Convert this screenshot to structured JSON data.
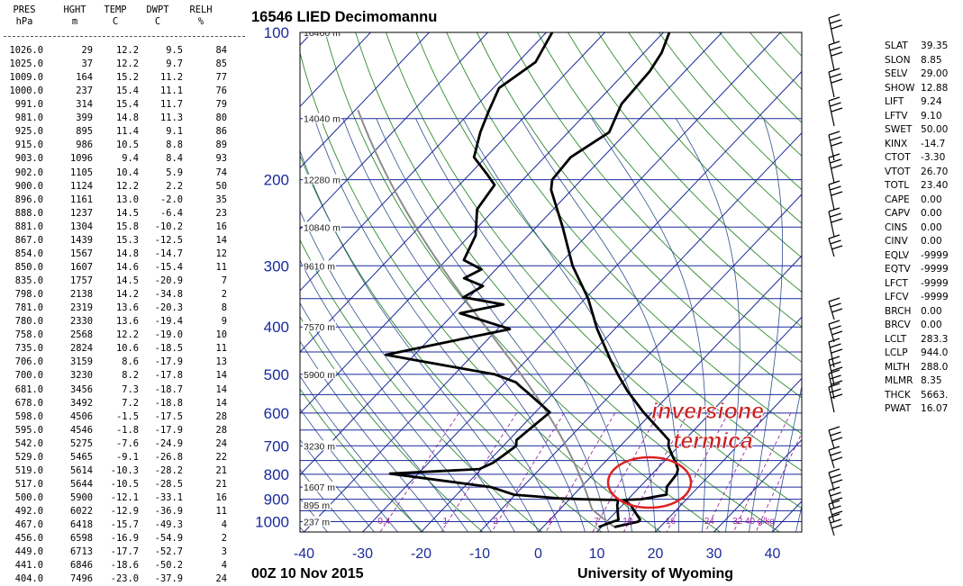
{
  "table": {
    "columns": [
      {
        "name": "PRES",
        "unit": "hPa"
      },
      {
        "name": "HGHT",
        "unit": "m"
      },
      {
        "name": "TEMP",
        "unit": "C"
      },
      {
        "name": "DWPT",
        "unit": "C"
      },
      {
        "name": "RELH",
        "unit": "%"
      }
    ],
    "rows": [
      [
        "1026.0",
        "29",
        "12.2",
        "9.5",
        "84"
      ],
      [
        "1025.0",
        "37",
        "12.2",
        "9.7",
        "85"
      ],
      [
        "1009.0",
        "164",
        "15.2",
        "11.2",
        "77"
      ],
      [
        "1000.0",
        "237",
        "15.4",
        "11.1",
        "76"
      ],
      [
        "991.0",
        "314",
        "15.4",
        "11.7",
        "79"
      ],
      [
        "981.0",
        "399",
        "14.8",
        "11.3",
        "80"
      ],
      [
        "925.0",
        "895",
        "11.4",
        "9.1",
        "86"
      ],
      [
        "915.0",
        "986",
        "10.5",
        "8.8",
        "89"
      ],
      [
        "903.0",
        "1096",
        "9.4",
        "8.4",
        "93"
      ],
      [
        "902.0",
        "1105",
        "10.4",
        "5.9",
        "74"
      ],
      [
        "900.0",
        "1124",
        "12.2",
        "2.2",
        "50"
      ],
      [
        "896.0",
        "1161",
        "13.0",
        "-2.0",
        "35"
      ],
      [
        "888.0",
        "1237",
        "14.5",
        "-6.4",
        "23"
      ],
      [
        "881.0",
        "1304",
        "15.8",
        "-10.2",
        "16"
      ],
      [
        "867.0",
        "1439",
        "15.3",
        "-12.5",
        "14"
      ],
      [
        "854.0",
        "1567",
        "14.8",
        "-14.7",
        "12"
      ],
      [
        "850.0",
        "1607",
        "14.6",
        "-15.4",
        "11"
      ],
      [
        "835.0",
        "1757",
        "14.5",
        "-20.9",
        "7"
      ],
      [
        "798.0",
        "2138",
        "14.2",
        "-34.8",
        "2"
      ],
      [
        "781.0",
        "2319",
        "13.6",
        "-20.3",
        "8"
      ],
      [
        "780.0",
        "2330",
        "13.6",
        "-19.4",
        "9"
      ],
      [
        "758.0",
        "2568",
        "12.2",
        "-19.0",
        "10"
      ],
      [
        "735.0",
        "2824",
        "10.6",
        "-18.5",
        "11"
      ],
      [
        "706.0",
        "3159",
        "8.6",
        "-17.9",
        "13"
      ],
      [
        "700.0",
        "3230",
        "8.2",
        "-17.8",
        "14"
      ],
      [
        "681.0",
        "3456",
        "7.3",
        "-18.7",
        "14"
      ],
      [
        "678.0",
        "3492",
        "7.2",
        "-18.8",
        "14"
      ],
      [
        "598.0",
        "4506",
        "-1.5",
        "-17.5",
        "28"
      ],
      [
        "595.0",
        "4546",
        "-1.8",
        "-17.9",
        "28"
      ],
      [
        "542.0",
        "5275",
        "-7.6",
        "-24.9",
        "24"
      ],
      [
        "529.0",
        "5465",
        "-9.1",
        "-26.8",
        "22"
      ],
      [
        "519.0",
        "5614",
        "-10.3",
        "-28.2",
        "21"
      ],
      [
        "517.0",
        "5644",
        "-10.5",
        "-28.5",
        "21"
      ],
      [
        "500.0",
        "5900",
        "-12.1",
        "-33.1",
        "16"
      ],
      [
        "492.0",
        "6022",
        "-12.9",
        "-36.9",
        "11"
      ],
      [
        "467.0",
        "6418",
        "-15.7",
        "-49.3",
        "4"
      ],
      [
        "456.0",
        "6598",
        "-16.9",
        "-54.9",
        "2"
      ],
      [
        "449.0",
        "6713",
        "-17.7",
        "-52.7",
        "3"
      ],
      [
        "441.0",
        "6846",
        "-18.6",
        "-50.2",
        "4"
      ],
      [
        "404.0",
        "7496",
        "-23.0",
        "-37.9",
        "24"
      ]
    ]
  },
  "chart_data": {
    "type": "line",
    "title": "16546 LIED Decimomannu",
    "subtitle": "00Z 10 Nov 2015",
    "credit": "University of Wyoming",
    "x_axis": {
      "ticks": [
        -40,
        -30,
        -20,
        -10,
        0,
        10,
        20,
        30,
        40
      ]
    },
    "y_axis": {
      "scale": "skew-T log-p",
      "ticks": [
        100,
        200,
        300,
        400,
        500,
        600,
        700,
        800,
        900,
        1000
      ]
    },
    "height_labels": [
      "16460 m",
      "14040 m",
      "12280 m",
      "10840 m",
      "9610 m",
      "7570 m",
      "5900 m",
      "3230 m",
      "1607 m",
      "895 m",
      "237 m"
    ],
    "mixing_ratio_labels": [
      "0.4",
      "1",
      "2",
      "4",
      "7",
      "10",
      "16",
      "24",
      "32",
      "40 g/kg"
    ],
    "series": [
      {
        "key": "temperature",
        "color": "#000000",
        "points": [
          [
            1026,
            12.2
          ],
          [
            1000,
            15.4
          ],
          [
            991,
            15.4
          ],
          [
            981,
            14.8
          ],
          [
            925,
            11.4
          ],
          [
            915,
            10.5
          ],
          [
            903,
            9.4
          ],
          [
            902,
            10.4
          ],
          [
            900,
            12.2
          ],
          [
            896,
            13.0
          ],
          [
            888,
            14.5
          ],
          [
            881,
            15.8
          ],
          [
            867,
            15.3
          ],
          [
            854,
            14.8
          ],
          [
            850,
            14.6
          ],
          [
            835,
            14.5
          ],
          [
            798,
            14.2
          ],
          [
            781,
            13.6
          ],
          [
            758,
            12.2
          ],
          [
            735,
            10.6
          ],
          [
            706,
            8.6
          ],
          [
            700,
            8.2
          ],
          [
            681,
            7.3
          ],
          [
            598,
            -1.5
          ],
          [
            542,
            -7.6
          ],
          [
            500,
            -12.1
          ],
          [
            467,
            -15.7
          ],
          [
            441,
            -18.6
          ],
          [
            404,
            -23.0
          ],
          [
            350,
            -29.5
          ],
          [
            300,
            -37.5
          ],
          [
            250,
            -45.5
          ],
          [
            210,
            -53.5
          ],
          [
            200,
            -55.0
          ],
          [
            180,
            -55.5
          ],
          [
            160,
            -53.0
          ],
          [
            140,
            -55.5
          ],
          [
            120,
            -56.0
          ],
          [
            110,
            -57.0
          ],
          [
            100,
            -59.0
          ]
        ]
      },
      {
        "key": "dewpoint",
        "color": "#000000",
        "points": [
          [
            1026,
            9.5
          ],
          [
            1000,
            11.1
          ],
          [
            991,
            11.7
          ],
          [
            981,
            11.3
          ],
          [
            925,
            9.1
          ],
          [
            915,
            8.8
          ],
          [
            903,
            8.4
          ],
          [
            902,
            5.9
          ],
          [
            900,
            2.2
          ],
          [
            896,
            -2.0
          ],
          [
            888,
            -6.4
          ],
          [
            881,
            -10.2
          ],
          [
            867,
            -12.5
          ],
          [
            854,
            -14.7
          ],
          [
            850,
            -15.4
          ],
          [
            835,
            -20.9
          ],
          [
            798,
            -34.8
          ],
          [
            781,
            -20.3
          ],
          [
            758,
            -19.0
          ],
          [
            735,
            -18.5
          ],
          [
            706,
            -17.9
          ],
          [
            700,
            -17.8
          ],
          [
            681,
            -18.7
          ],
          [
            598,
            -17.5
          ],
          [
            542,
            -24.9
          ],
          [
            529,
            -26.8
          ],
          [
            519,
            -28.2
          ],
          [
            500,
            -33.1
          ],
          [
            492,
            -36.9
          ],
          [
            467,
            -49.3
          ],
          [
            456,
            -54.9
          ],
          [
            449,
            -52.7
          ],
          [
            441,
            -50.2
          ],
          [
            404,
            -37.9
          ],
          [
            375,
            -49.0
          ],
          [
            360,
            -43.0
          ],
          [
            348,
            -51.0
          ],
          [
            330,
            -49.5
          ],
          [
            318,
            -54.0
          ],
          [
            305,
            -52.5
          ],
          [
            292,
            -57.0
          ],
          [
            260,
            -59.0
          ],
          [
            230,
            -63.0
          ],
          [
            205,
            -64.0
          ],
          [
            195,
            -67.0
          ],
          [
            180,
            -72.0
          ],
          [
            160,
            -75.0
          ],
          [
            145,
            -77.0
          ],
          [
            130,
            -79.0
          ],
          [
            115,
            -77.0
          ],
          [
            100,
            -79.0
          ]
        ]
      }
    ],
    "annotation": {
      "text_line1": "inversione",
      "text_line2": "termica",
      "color": "#cc2222"
    }
  },
  "indices": [
    [
      "SLAT",
      "39.35"
    ],
    [
      "SLON",
      "8.85"
    ],
    [
      "SELV",
      "29.00"
    ],
    [
      "SHOW",
      "12.88"
    ],
    [
      "LIFT",
      "9.24"
    ],
    [
      "LFTV",
      "9.10"
    ],
    [
      "SWET",
      "50.00"
    ],
    [
      "KINX",
      "-14.7"
    ],
    [
      "CTOT",
      "-3.30"
    ],
    [
      "VTOT",
      "26.70"
    ],
    [
      "TOTL",
      "23.40"
    ],
    [
      "CAPE",
      "0.00"
    ],
    [
      "CAPV",
      "0.00"
    ],
    [
      "CINS",
      "0.00"
    ],
    [
      "CINV",
      "0.00"
    ],
    [
      "EQLV",
      "-9999"
    ],
    [
      "EQTV",
      "-9999"
    ],
    [
      "LFCT",
      "-9999"
    ],
    [
      "LFCV",
      "-9999"
    ],
    [
      "BRCH",
      "0.00"
    ],
    [
      "BRCV",
      "0.00"
    ],
    [
      "LCLT",
      "283.3"
    ],
    [
      "LCLP",
      "944.0"
    ],
    [
      "MLTH",
      "288.0"
    ],
    [
      "MLMR",
      "8.35"
    ],
    [
      "THCK",
      "5663."
    ],
    [
      "PWAT",
      "16.07"
    ]
  ]
}
